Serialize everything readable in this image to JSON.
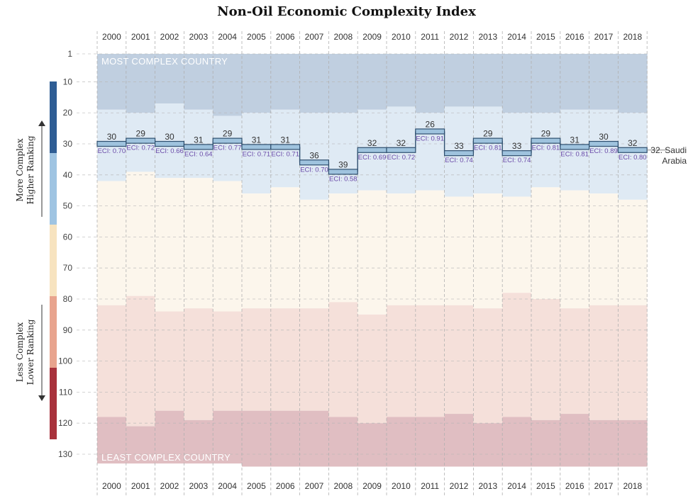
{
  "chart_data": {
    "type": "area",
    "title": "Non-Oil Economic Complexity Index",
    "years": [
      "2000",
      "2001",
      "2002",
      "2003",
      "2004",
      "2005",
      "2006",
      "2007",
      "2008",
      "2009",
      "2010",
      "2011",
      "2012",
      "2013",
      "2014",
      "2015",
      "2016",
      "2017",
      "2018"
    ],
    "y_ticks": [
      "1",
      "10",
      "20",
      "30",
      "40",
      "50",
      "60",
      "70",
      "80",
      "90",
      "100",
      "110",
      "120",
      "130"
    ],
    "ylim": [
      1,
      134
    ],
    "y_inverted": true,
    "rank": [
      30,
      29,
      30,
      31,
      29,
      31,
      31,
      36,
      39,
      32,
      32,
      26,
      33,
      29,
      33,
      29,
      31,
      30,
      32
    ],
    "eci": [
      "0.70",
      "0.72",
      "0.66",
      "0.64",
      "0.77",
      "0.71",
      "0.71",
      "0.70",
      "0.58",
      "0.69",
      "0.72",
      "0.91",
      "0.74",
      "0.81",
      "0.74",
      "0.81",
      "0.81",
      "0.89",
      "0.80"
    ],
    "eci_prefix": "ECI: ",
    "bands": {
      "top_quartile_bottom": [
        19,
        20,
        17,
        19,
        21,
        20,
        19,
        20,
        20,
        19,
        18,
        20,
        18,
        18,
        20,
        20,
        19,
        19,
        20
      ],
      "upper_quartile_bottom": [
        42,
        39,
        41,
        41,
        42,
        46,
        44,
        48,
        46,
        45,
        46,
        45,
        47,
        46,
        47,
        44,
        45,
        46,
        48
      ],
      "lower_quartile_top": [
        82,
        79,
        84,
        83,
        84,
        83,
        83,
        83,
        81,
        85,
        82,
        82,
        82,
        83,
        78,
        80,
        83,
        82,
        82
      ],
      "bottom_quartile_top": [
        118,
        121,
        116,
        119,
        116,
        116,
        116,
        116,
        118,
        120,
        118,
        118,
        117,
        120,
        118,
        119,
        117,
        119,
        119
      ],
      "total_countries": [
        133,
        133,
        133,
        133,
        133,
        134,
        134,
        134,
        134,
        134,
        134,
        134,
        134,
        134,
        134,
        134,
        134,
        134,
        134
      ]
    },
    "band_colors": [
      "#c0cfe0",
      "#dfeaf4",
      "#fcf6ec",
      "#f5e0da",
      "#e0bec2"
    ],
    "line_color": "#2f4f6f",
    "marker_fill": "#9fc3de",
    "most_complex_label": "MOST COMPLEX COUNTRY",
    "least_complex_label": "LEAST COMPLEX COUNTRY",
    "end_label": [
      "32. Saudi",
      "Arabia"
    ],
    "side_upper_label": [
      "More Complex",
      "Higher Ranking"
    ],
    "side_lower_label": [
      "Less Complex",
      "Lower Ranking"
    ],
    "side_bar_colors": [
      "#2e5d94",
      "#9fc4e2",
      "#f7e3bf",
      "#e8a48e",
      "#a8323c"
    ]
  }
}
